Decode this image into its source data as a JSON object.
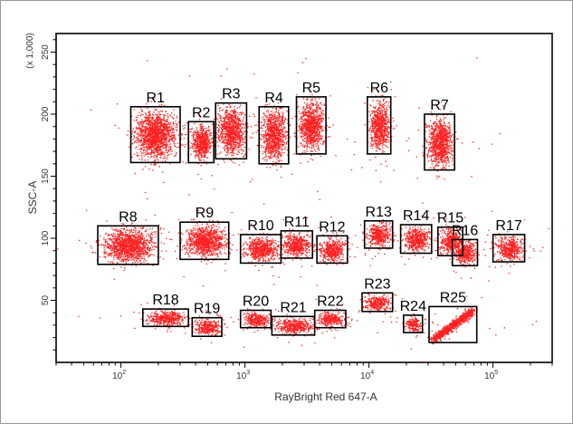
{
  "chart_data": {
    "type": "scatter",
    "xlabel": "RayBright Red 647-A",
    "ylabel": "SSC-A",
    "y_multiplier_label": "(x 1,000)",
    "x_scale": "log",
    "x_tick_labels": [
      {
        "value": 100,
        "base": "10",
        "exp": "2"
      },
      {
        "value": 1000,
        "base": "10",
        "exp": "3"
      },
      {
        "value": 10000,
        "base": "10",
        "exp": "4"
      },
      {
        "value": 100000,
        "base": "10",
        "exp": "5"
      }
    ],
    "xlim": [
      30,
      300000
    ],
    "ylim": [
      0,
      265
    ],
    "y_ticks": [
      50,
      100,
      150,
      200,
      250
    ],
    "grid": false,
    "point_color": "#ff2020",
    "gate_color": "#000000",
    "gates": [
      {
        "label": "R1",
        "x": [
          120,
          300
        ],
        "y": [
          161,
          206
        ]
      },
      {
        "label": "R2",
        "x": [
          350,
          560
        ],
        "y": [
          161,
          194
        ]
      },
      {
        "label": "R3",
        "x": [
          580,
          1030
        ],
        "y": [
          164,
          209
        ]
      },
      {
        "label": "R4",
        "x": [
          1300,
          2250
        ],
        "y": [
          160,
          206
        ]
      },
      {
        "label": "R5",
        "x": [
          2600,
          4500
        ],
        "y": [
          168,
          214
        ]
      },
      {
        "label": "R6",
        "x": [
          9700,
          15000
        ],
        "y": [
          168,
          214
        ]
      },
      {
        "label": "R7",
        "x": [
          28000,
          49000
        ],
        "y": [
          155,
          200
        ]
      },
      {
        "label": "R8",
        "x": [
          65,
          200
        ],
        "y": [
          79,
          110
        ]
      },
      {
        "label": "R9",
        "x": [
          300,
          740
        ],
        "y": [
          83,
          113
        ]
      },
      {
        "label": "R10",
        "x": [
          920,
          1950
        ],
        "y": [
          80,
          103
        ]
      },
      {
        "label": "R11",
        "x": [
          1950,
          3500
        ],
        "y": [
          84,
          106
        ]
      },
      {
        "label": "R12",
        "x": [
          3800,
          6700
        ],
        "y": [
          80,
          102
        ]
      },
      {
        "label": "R13",
        "x": [
          9200,
          15500
        ],
        "y": [
          92,
          114
        ]
      },
      {
        "label": "R14",
        "x": [
          18000,
          32000
        ],
        "y": [
          88,
          111
        ]
      },
      {
        "label": "R15",
        "x": [
          36000,
          57000
        ],
        "y": [
          86,
          109
        ]
      },
      {
        "label": "R16",
        "x": [
          47000,
          75000
        ],
        "y": [
          78,
          99
        ]
      },
      {
        "label": "R17",
        "x": [
          100000,
          180000
        ],
        "y": [
          81,
          103
        ]
      },
      {
        "label": "R18",
        "x": [
          150,
          350
        ],
        "y": [
          29,
          43
        ]
      },
      {
        "label": "R19",
        "x": [
          375,
          650
        ],
        "y": [
          21,
          36
        ]
      },
      {
        "label": "R20",
        "x": [
          920,
          1620
        ],
        "y": [
          28,
          42
        ]
      },
      {
        "label": "R21",
        "x": [
          1650,
          3650
        ],
        "y": [
          22,
          37
        ]
      },
      {
        "label": "R22",
        "x": [
          3650,
          6500
        ],
        "y": [
          28,
          42
        ]
      },
      {
        "label": "R23",
        "x": [
          8800,
          15500
        ],
        "y": [
          41,
          56
        ]
      },
      {
        "label": "R24",
        "x": [
          19000,
          27000
        ],
        "y": [
          24,
          38
        ]
      },
      {
        "label": "R25",
        "x": [
          30500,
          74000
        ],
        "y": [
          16,
          45
        ]
      }
    ]
  }
}
